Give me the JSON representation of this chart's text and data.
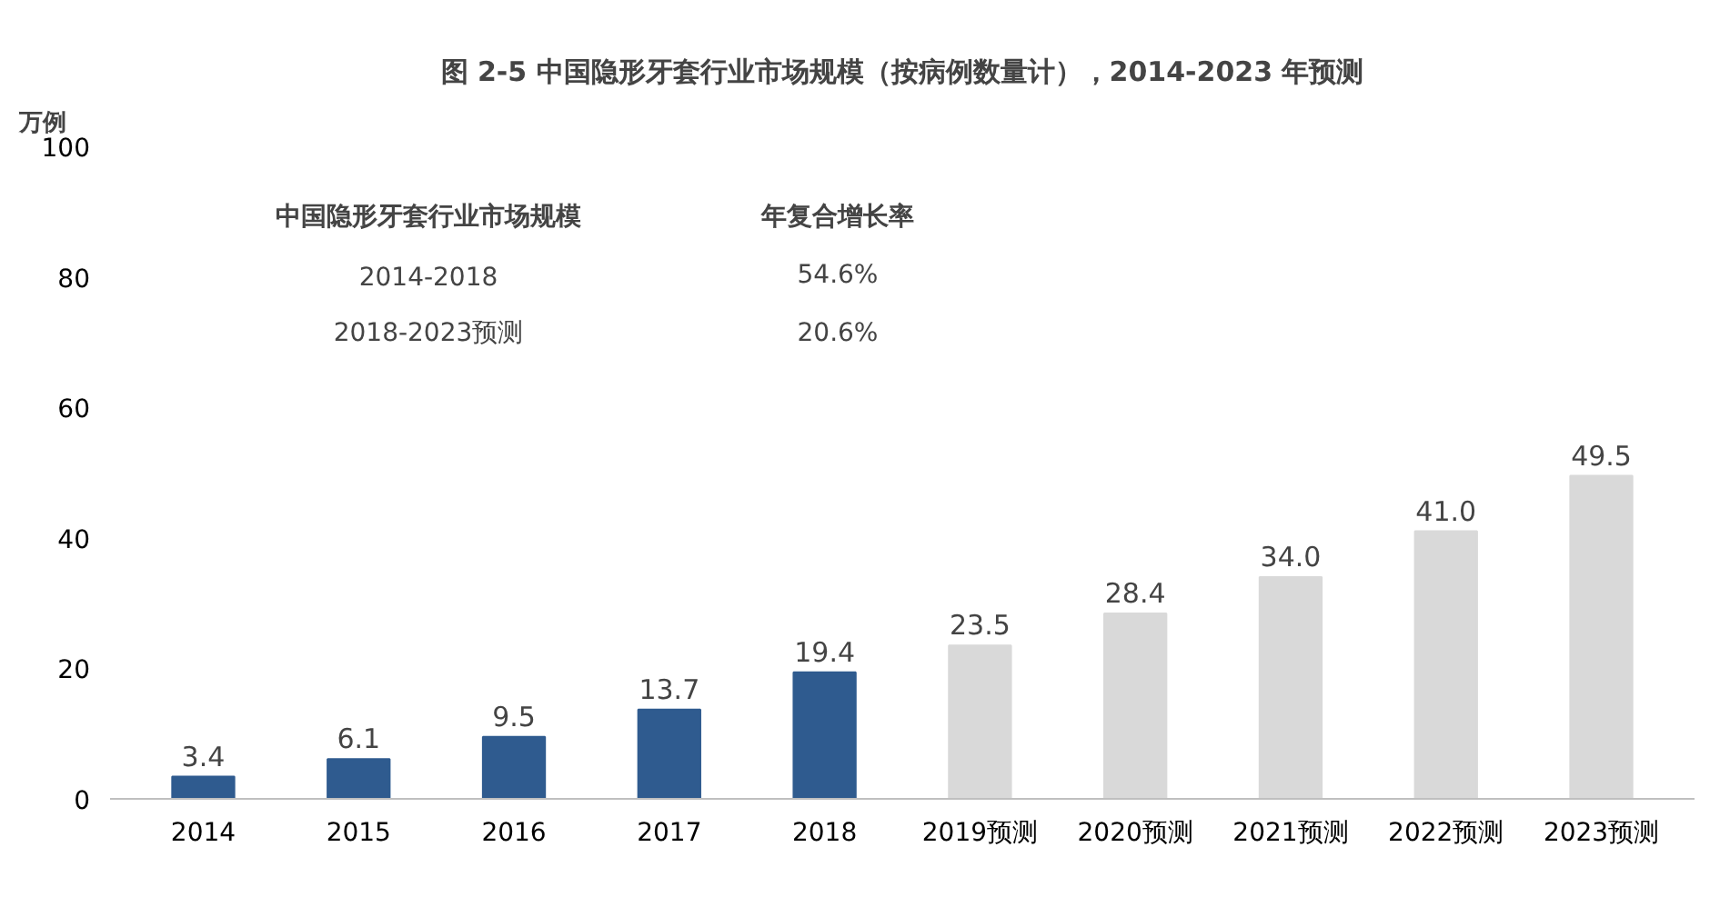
{
  "chart_data": {
    "type": "bar",
    "title": "图 2-5 中国隐形牙套行业市场规模（按病例数量计），2014-2023 年预测",
    "ylabel": "万例",
    "categories": [
      "2014",
      "2015",
      "2016",
      "2017",
      "2018",
      "2019预测",
      "2020预测",
      "2021预测",
      "2022预测",
      "2023预测"
    ],
    "values": [
      3.4,
      6.1,
      9.5,
      13.7,
      19.4,
      23.5,
      28.4,
      34.0,
      41.0,
      49.5
    ],
    "colors": [
      "#2f5b8f",
      "#2f5b8f",
      "#2f5b8f",
      "#2f5b8f",
      "#2f5b8f",
      "#d9d9d9",
      "#d9d9d9",
      "#d9d9d9",
      "#d9d9d9",
      "#d9d9d9"
    ],
    "value_labels": [
      "3.4",
      "6.1",
      "9.5",
      "13.7",
      "19.4",
      "23.5",
      "28.4",
      "34.0",
      "41.0",
      "49.5"
    ],
    "ylim": [
      0,
      100
    ],
    "yticks": [
      0,
      20,
      40,
      60,
      80,
      100
    ],
    "grid": false,
    "annotations": [
      "中国隐形牙套行业市场规模",
      "年复合增长率",
      "2014-2018",
      "54.6%",
      "2018-2023预测",
      "20.6%"
    ]
  }
}
